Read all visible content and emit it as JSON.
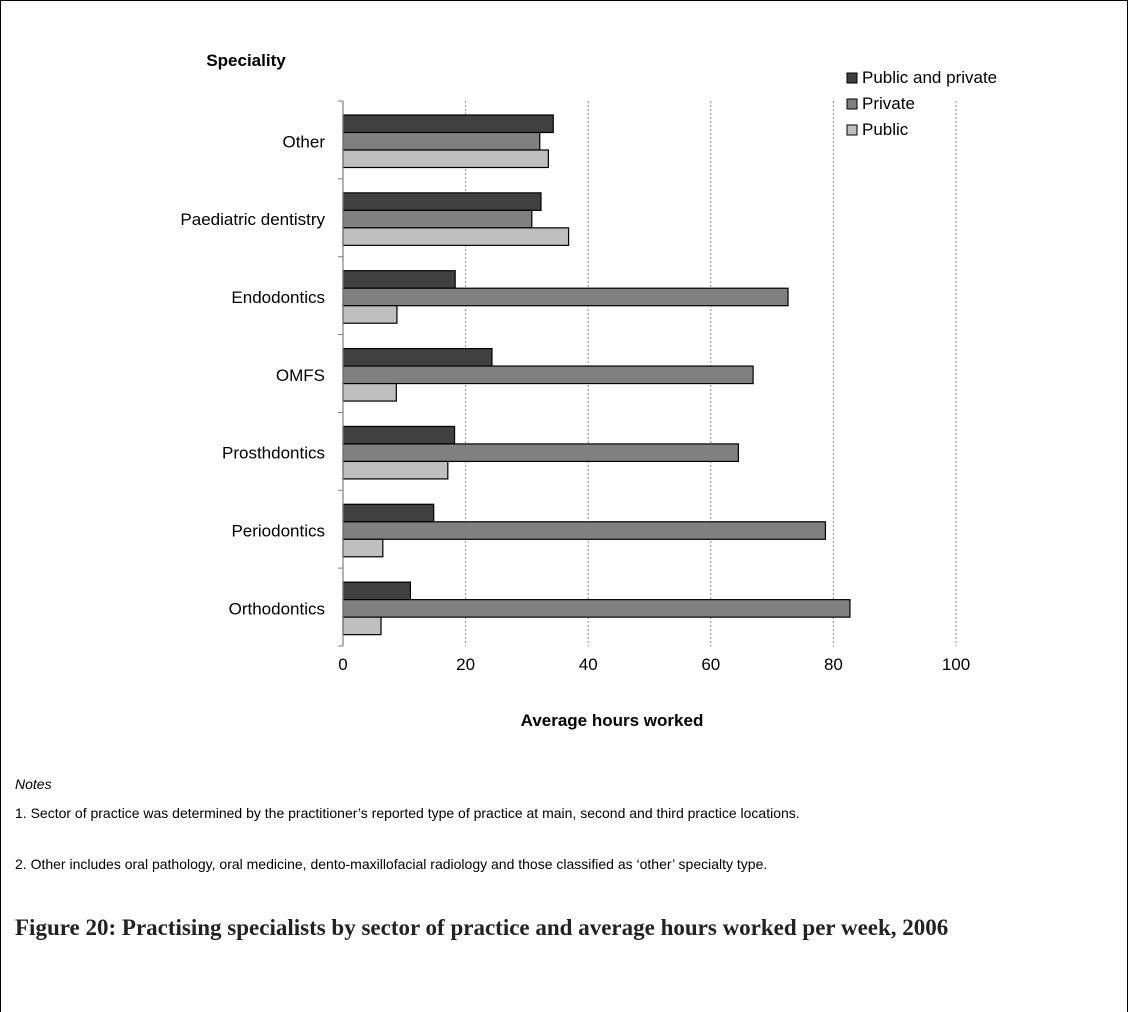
{
  "chart_data": {
    "type": "bar",
    "orientation": "horizontal",
    "title": "",
    "ylabel": "Speciality",
    "xlabel": "Average hours worked",
    "categories": [
      "Other",
      "Paediatric dentistry",
      "Endodontics",
      "OMFS",
      "Prosthdontics",
      "Periodontics",
      "Orthodontics"
    ],
    "series": [
      {
        "name": "Public and private",
        "color": "#404040",
        "values": [
          34.3,
          32.3,
          18.3,
          24.3,
          18.2,
          14.8,
          11.0
        ]
      },
      {
        "name": "Private",
        "color": "#808080",
        "values": [
          32.1,
          30.8,
          72.6,
          66.9,
          64.5,
          78.7,
          82.7
        ]
      },
      {
        "name": "Public",
        "color": "#bfbfbf",
        "values": [
          33.5,
          36.8,
          8.8,
          8.7,
          17.1,
          6.5,
          6.2
        ]
      }
    ],
    "xlim": [
      0,
      100
    ],
    "xticks": [
      0,
      20,
      40,
      60,
      80,
      100
    ],
    "grid": "vertical dotted",
    "legend": "top-right"
  },
  "notes": {
    "heading": "Notes",
    "items": [
      "1. Sector of practice was determined by the practitioner’s reported type of practice at main, second and third practice locations.",
      "2. Other includes oral pathology, oral medicine, dento-maxillofacial radiology and those classified as ‘other’ specialty type."
    ]
  },
  "caption": "Figure 20: Practising specialists by sector of practice and average hours worked per week, 2006"
}
